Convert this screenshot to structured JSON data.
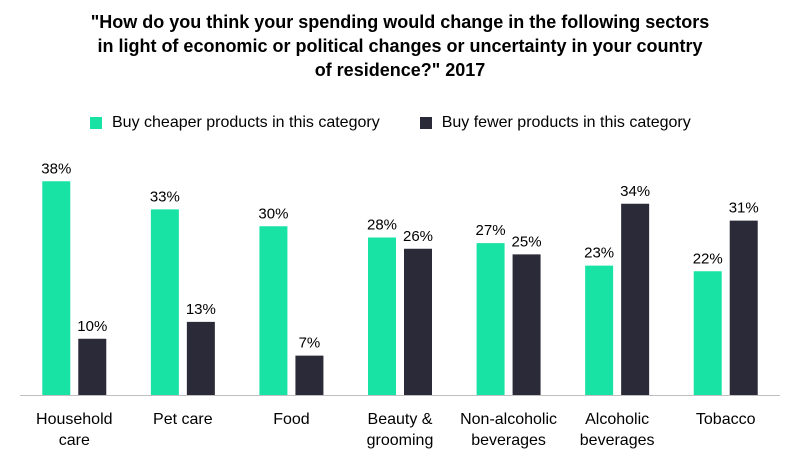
{
  "chart_data": {
    "type": "bar",
    "title_lines": [
      "\"How do you think your spending would change in the following sectors",
      "in light of economic or political changes or uncertainty in your country",
      "of residence?\" 2017"
    ],
    "categories": [
      [
        "Household",
        "care"
      ],
      [
        "Pet care"
      ],
      [
        "Food"
      ],
      [
        "Beauty &",
        "grooming"
      ],
      [
        "Non-alcoholic",
        "beverages"
      ],
      [
        "Alcoholic",
        "beverages"
      ],
      [
        "Tobacco"
      ]
    ],
    "series": [
      {
        "name": "Buy cheaper products in this category",
        "color": "#19e3a4",
        "values": [
          38,
          33,
          30,
          28,
          27,
          23,
          22
        ],
        "labels": [
          "38%",
          "33%",
          "30%",
          "28%",
          "27%",
          "23%",
          "22%"
        ]
      },
      {
        "name": "Buy fewer products in this category",
        "color": "#2a2a38",
        "values": [
          10,
          13,
          7,
          26,
          25,
          34,
          31
        ],
        "labels": [
          "10%",
          "13%",
          "7%",
          "26%",
          "25%",
          "34%",
          "31%"
        ]
      }
    ],
    "ylim": [
      0,
      40
    ],
    "grid": false,
    "legend_position": "top"
  }
}
